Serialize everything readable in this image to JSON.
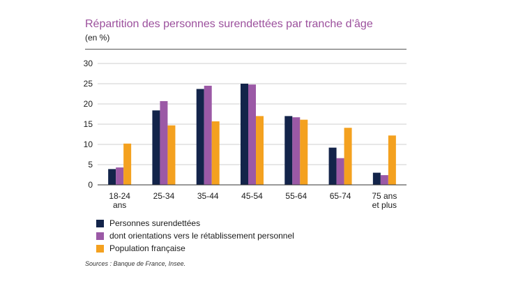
{
  "header": {
    "title": "Répartition des personnes surendettées par tranche d’âge",
    "unit": "(en %)"
  },
  "chart_data": {
    "type": "bar",
    "title": "Répartition des personnes surendettées par tranche d’âge",
    "ylabel": "(en %)",
    "xlabel": "",
    "ylim": [
      0,
      30
    ],
    "yticks": [
      "0",
      "5",
      "10",
      "15",
      "20",
      "25",
      "30"
    ],
    "grid": true,
    "categories": [
      [
        "18-24",
        "ans"
      ],
      [
        "25-34"
      ],
      [
        "35-44"
      ],
      [
        "45-54"
      ],
      [
        "55-64"
      ],
      [
        "65-74"
      ],
      [
        "75 ans",
        "et plus"
      ]
    ],
    "series": [
      {
        "name": "Personnes surendettées",
        "color": "#13244a",
        "values": [
          3.9,
          18.4,
          23.7,
          25.0,
          17.0,
          9.2,
          3.0
        ]
      },
      {
        "name": "dont orientations vers le rétablissement personnel",
        "color": "#9b59a6",
        "values": [
          4.3,
          20.7,
          24.5,
          24.8,
          16.7,
          6.6,
          2.4
        ]
      },
      {
        "name": "Population française",
        "color": "#f4a11f",
        "values": [
          10.2,
          14.7,
          15.7,
          17.0,
          16.1,
          14.1,
          12.2
        ]
      }
    ]
  },
  "footer": {
    "source": "Sources : Banque de France, Insee."
  }
}
